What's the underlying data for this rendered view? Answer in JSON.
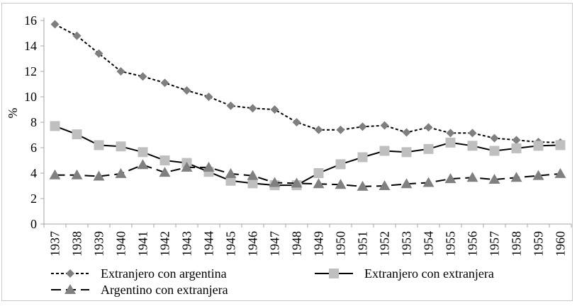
{
  "chart_data": {
    "type": "line",
    "title": "",
    "xlabel": "",
    "ylabel": "%",
    "ylim": [
      0,
      16
    ],
    "yticks": [
      0,
      2,
      4,
      6,
      8,
      10,
      12,
      14,
      16
    ],
    "grid": false,
    "legend_position": "bottom",
    "categories": [
      "1937",
      "1938",
      "1939",
      "1940",
      "1941",
      "1942",
      "1943",
      "1944",
      "1945",
      "1946",
      "1947",
      "1948",
      "1949",
      "1950",
      "1951",
      "1952",
      "1953",
      "1954",
      "1955",
      "1956",
      "1957",
      "1958",
      "1959",
      "1960"
    ],
    "series": [
      {
        "name": "Extranjero con argentina",
        "marker": "diamond",
        "line": "short-dash",
        "color": "#7f7f7f",
        "values": [
          15.7,
          14.8,
          13.4,
          12.0,
          11.6,
          11.1,
          10.5,
          10.0,
          9.3,
          9.1,
          9.0,
          8.0,
          7.4,
          7.4,
          7.65,
          7.75,
          7.2,
          7.6,
          7.15,
          7.15,
          6.75,
          6.6,
          6.45,
          6.4
        ]
      },
      {
        "name": "Extranjero con extranjera",
        "marker": "square",
        "line": "solid",
        "color": "#bfbfbf",
        "values": [
          7.7,
          7.05,
          6.2,
          6.1,
          5.65,
          5.0,
          4.8,
          4.1,
          3.4,
          3.2,
          3.05,
          3.05,
          4.0,
          4.7,
          5.25,
          5.75,
          5.65,
          5.9,
          6.4,
          6.15,
          5.75,
          5.95,
          6.15,
          6.2
        ]
      },
      {
        "name": "Argentino con extranjera",
        "marker": "triangle",
        "line": "long-dash",
        "color": "#808080",
        "values": [
          3.85,
          3.85,
          3.75,
          3.95,
          4.65,
          4.05,
          4.45,
          4.45,
          3.95,
          3.8,
          3.25,
          3.2,
          3.15,
          3.1,
          2.95,
          3.0,
          3.15,
          3.25,
          3.55,
          3.65,
          3.5,
          3.65,
          3.8,
          3.95
        ]
      }
    ]
  }
}
